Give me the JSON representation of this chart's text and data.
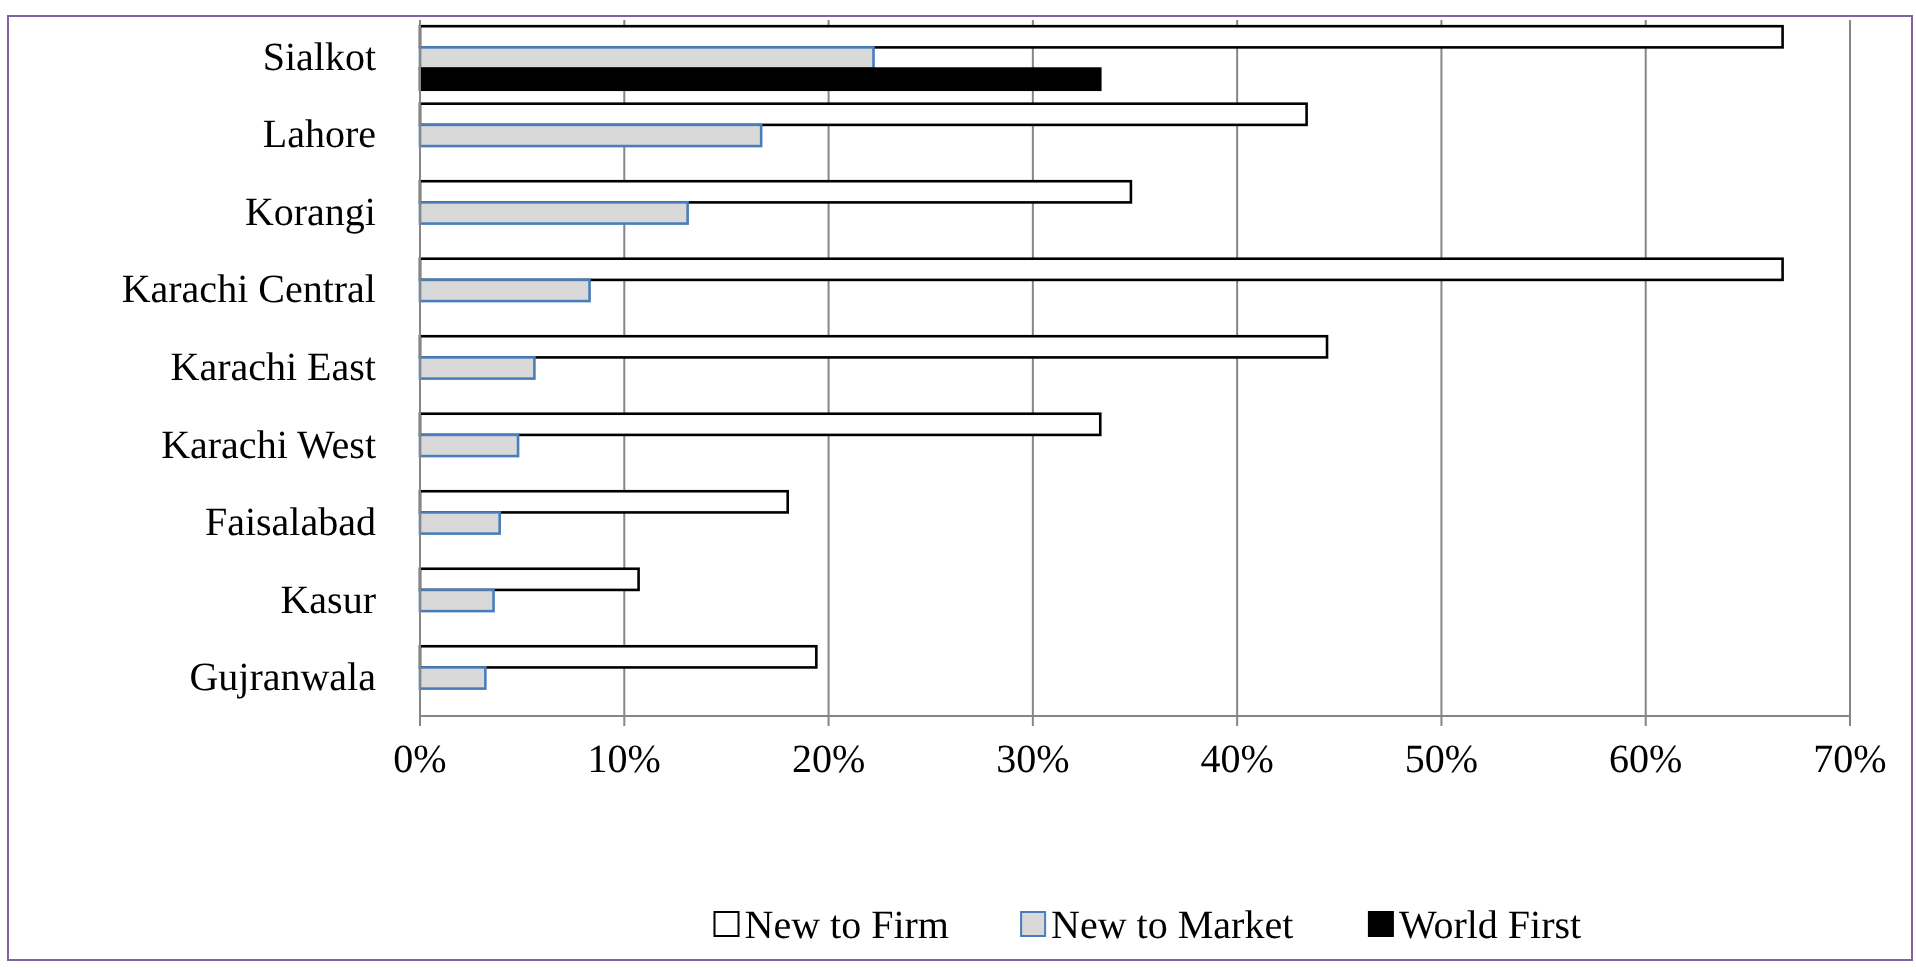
{
  "chart_data": {
    "type": "bar",
    "orientation": "horizontal",
    "categories": [
      "Sialkot",
      "Lahore",
      "Korangi",
      "Karachi Central",
      "Karachi East",
      "Karachi West",
      "Faisalabad",
      "Kasur",
      "Gujranwala"
    ],
    "series": [
      {
        "name": "New to Firm",
        "color": "#ffffff",
        "values": [
          66.7,
          43.4,
          34.8,
          66.7,
          44.4,
          33.3,
          18.0,
          10.7,
          19.4
        ]
      },
      {
        "name": "New to Market",
        "color": "#d9d9d9",
        "values": [
          22.2,
          16.7,
          13.1,
          8.3,
          5.6,
          4.8,
          3.9,
          3.6,
          3.2
        ]
      },
      {
        "name": "World First",
        "color": "#000000",
        "values": [
          33.3,
          null,
          null,
          null,
          null,
          null,
          null,
          null,
          null
        ]
      }
    ],
    "xlim": [
      0,
      70
    ],
    "xticks": [
      {
        "value": 0,
        "label": "0%"
      },
      {
        "value": 10,
        "label": "10%"
      },
      {
        "value": 20,
        "label": "20%"
      },
      {
        "value": 30,
        "label": "30%"
      },
      {
        "value": 40,
        "label": "40%"
      },
      {
        "value": 50,
        "label": "50%"
      },
      {
        "value": 60,
        "label": "60%"
      },
      {
        "value": 70,
        "label": "70%"
      }
    ],
    "grid": "x",
    "legend": "bottom"
  }
}
